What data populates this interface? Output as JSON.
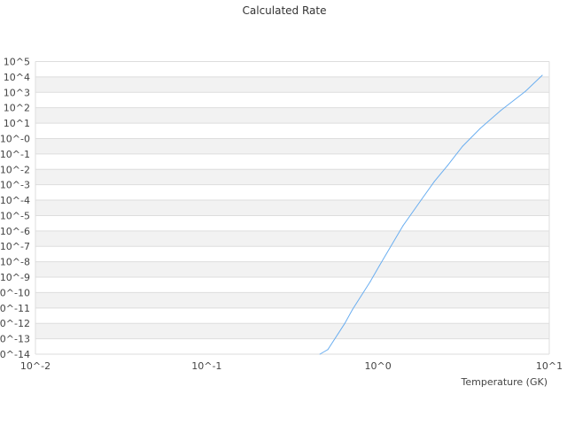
{
  "chart_data": {
    "type": "line",
    "title": "Calculated Rate",
    "xlabel": "Temperature (GK)",
    "ylabel": "",
    "x_scale": "log",
    "y_scale": "log",
    "xlim": [
      0.01,
      10
    ],
    "ylim": [
      1e-14,
      100000.0
    ],
    "x_tick_labels": [
      "10^-2",
      "10^-1",
      "10^0",
      "10^1"
    ],
    "y_tick_labels": [
      "10^5",
      "10^4",
      "10^3",
      "10^2",
      "10^1",
      "10^-0",
      "10^-1",
      "10^-2",
      "10^-3",
      "10^-4",
      "10^-5",
      "10^-6",
      "10^-7",
      "10^-8",
      "10^-9",
      "10^-10",
      "10^-11",
      "10^-12",
      "10^-13",
      "10^-14"
    ],
    "grid": "horizontal alternating bands",
    "line_color": "#6aaef0",
    "band_color": "#f2f2f2",
    "series": [
      {
        "x": [
          0.458,
          0.51,
          0.64,
          0.71,
          0.9,
          1.02,
          1.4,
          1.8,
          2.13,
          2.55,
          3.12,
          3.96,
          5.2,
          7.26,
          9.1
        ],
        "y": [
          1e-14,
          2e-14,
          1e-12,
          8e-12,
          5e-10,
          5.6e-09,
          2.2e-06,
          0.000115,
          0.0016,
          0.018,
          0.32,
          4.6,
          65,
          1170,
          12900
        ]
      }
    ]
  }
}
